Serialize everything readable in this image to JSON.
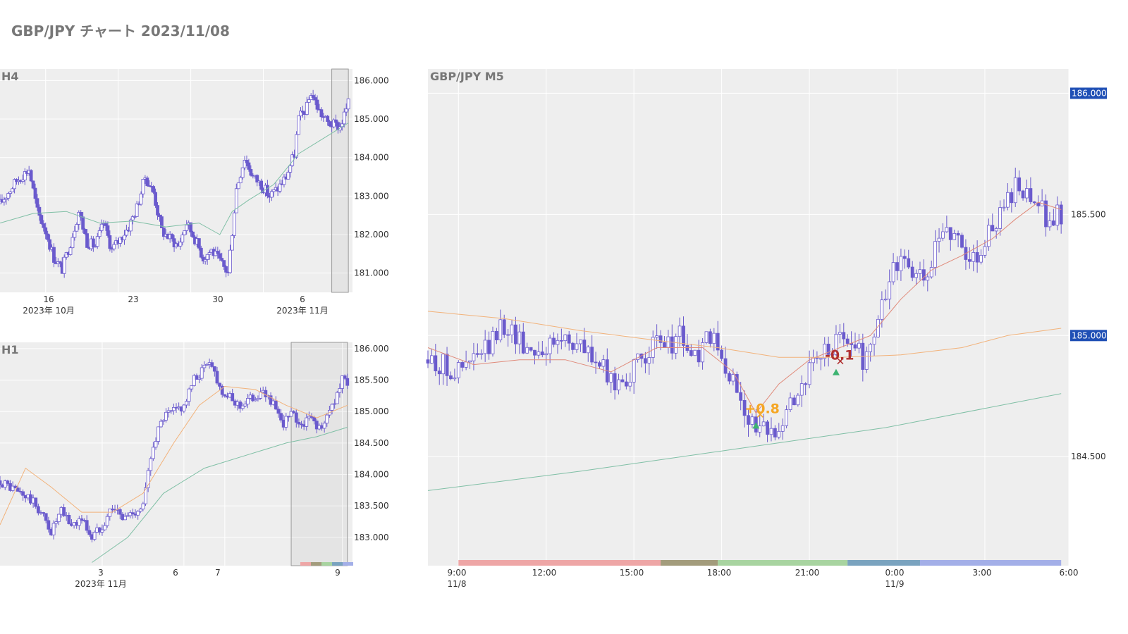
{
  "title": "GBP/JPY チャート 2023/11/08",
  "colors": {
    "plot_bg": "#eeeeee",
    "grid": "#ffffff",
    "candle": "#6a5acd",
    "ma_red": "#e08a7a",
    "ma_orange": "#f2b27a",
    "ma_green": "#7fbfa5",
    "price_tag": "#1f4fb5",
    "win": "#f5a623",
    "loss": "#b03030",
    "entry_marker": "#3cb371"
  },
  "chart_data": [
    {
      "type": "candlestick",
      "title": "H4",
      "yticks": [
        "186.000",
        "185.000",
        "184.000",
        "183.000",
        "182.000",
        "181.000"
      ],
      "ytick_values": [
        186,
        185,
        184,
        183,
        182,
        181
      ],
      "xticks": [
        "16",
        "23",
        "30",
        "6"
      ],
      "xsub": [
        "2023年 10月",
        "2023年 11月"
      ],
      "ylim": [
        180.5,
        186.3
      ],
      "path": [
        [
          0,
          182.8
        ],
        [
          4,
          183.4
        ],
        [
          7,
          183.7
        ],
        [
          9,
          182.6
        ],
        [
          11,
          182.1
        ],
        [
          13,
          181.4
        ],
        [
          15,
          181.1
        ],
        [
          17,
          181.8
        ],
        [
          19,
          182.6
        ],
        [
          21,
          181.8
        ],
        [
          23,
          181.7
        ],
        [
          25,
          182.3
        ],
        [
          27,
          181.6
        ],
        [
          29,
          181.9
        ],
        [
          31,
          182.2
        ],
        [
          33,
          182.7
        ],
        [
          35,
          183.5
        ],
        [
          37,
          183.1
        ],
        [
          39,
          182.1
        ],
        [
          41,
          181.9
        ],
        [
          43,
          181.7
        ],
        [
          45,
          182.3
        ],
        [
          47,
          181.9
        ],
        [
          49,
          181.4
        ],
        [
          51,
          181.6
        ],
        [
          53,
          181.3
        ],
        [
          55,
          181.0
        ],
        [
          57,
          183.2
        ],
        [
          59,
          184.0
        ],
        [
          61,
          183.5
        ],
        [
          63,
          183.3
        ],
        [
          65,
          183.0
        ],
        [
          67,
          183.2
        ],
        [
          69,
          183.5
        ],
        [
          71,
          184.1
        ],
        [
          72,
          185.0
        ],
        [
          74,
          185.3
        ],
        [
          75,
          185.7
        ],
        [
          77,
          185.2
        ],
        [
          79,
          184.9
        ],
        [
          82,
          184.8
        ],
        [
          84,
          185.4
        ]
      ],
      "ma": [
        {
          "color_key": "ma_green",
          "pts": [
            [
              0,
              182.3
            ],
            [
              8,
              182.55
            ],
            [
              16,
              182.6
            ],
            [
              24,
              182.3
            ],
            [
              32,
              182.35
            ],
            [
              40,
              182.2
            ],
            [
              48,
              182.3
            ],
            [
              53,
              182.0
            ],
            [
              56,
              182.6
            ],
            [
              60,
              182.9
            ],
            [
              66,
              183.3
            ],
            [
              72,
              184.1
            ],
            [
              78,
              184.5
            ],
            [
              84,
              184.9
            ]
          ]
        }
      ],
      "highlight_x": [
        80,
        84
      ]
    },
    {
      "type": "candlestick",
      "title": "H1",
      "yticks": [
        "186.000",
        "185.500",
        "185.000",
        "184.500",
        "184.000",
        "183.500",
        "183.000"
      ],
      "ytick_values": [
        186,
        185.5,
        185,
        184.5,
        184,
        183.5,
        183
      ],
      "xticks": [
        "3",
        "6",
        "7",
        "9"
      ],
      "xsub": [
        "2023年 11月"
      ],
      "ylim": [
        182.55,
        186.1
      ],
      "path": [
        [
          0,
          183.9
        ],
        [
          4,
          183.7
        ],
        [
          6,
          183.6
        ],
        [
          8,
          183.4
        ],
        [
          10,
          183.1
        ],
        [
          12,
          183.4
        ],
        [
          14,
          183.2
        ],
        [
          16,
          183.3
        ],
        [
          18,
          183.0
        ],
        [
          20,
          183.2
        ],
        [
          22,
          183.5
        ],
        [
          24,
          183.3
        ],
        [
          26,
          183.4
        ],
        [
          28,
          183.5
        ],
        [
          30,
          184.5
        ],
        [
          32,
          184.9
        ],
        [
          34,
          185.0
        ],
        [
          36,
          185.1
        ],
        [
          38,
          185.5
        ],
        [
          40,
          185.7
        ],
        [
          41,
          185.85
        ],
        [
          43,
          185.4
        ],
        [
          45,
          185.2
        ],
        [
          47,
          185.1
        ],
        [
          49,
          185.2
        ],
        [
          51,
          185.3
        ],
        [
          53,
          185.2
        ],
        [
          55,
          184.8
        ],
        [
          57,
          184.95
        ],
        [
          59,
          184.8
        ],
        [
          61,
          184.9
        ],
        [
          63,
          184.7
        ],
        [
          65,
          185.1
        ],
        [
          67,
          185.5
        ],
        [
          68,
          185.5
        ]
      ],
      "ma": [
        {
          "color_key": "ma_orange",
          "pts": [
            [
              0,
              183.2
            ],
            [
              5,
              184.1
            ],
            [
              10,
              183.8
            ],
            [
              16,
              183.4
            ],
            [
              22,
              183.4
            ],
            [
              28,
              183.7
            ],
            [
              34,
              184.5
            ],
            [
              39,
              185.1
            ],
            [
              44,
              185.4
            ],
            [
              50,
              185.35
            ],
            [
              56,
              185.1
            ],
            [
              62,
              184.9
            ],
            [
              68,
              185.1
            ]
          ]
        },
        {
          "color_key": "ma_green",
          "pts": [
            [
              18,
              182.6
            ],
            [
              25,
              183.0
            ],
            [
              32,
              183.7
            ],
            [
              40,
              184.1
            ],
            [
              48,
              184.3
            ],
            [
              56,
              184.5
            ],
            [
              62,
              184.6
            ],
            [
              68,
              184.75
            ]
          ]
        }
      ],
      "highlight_x": [
        57,
        68
      ]
    },
    {
      "type": "candlestick",
      "title": "GBP/JPY M5",
      "yticks": [
        "185.500",
        "184.500"
      ],
      "ytick_values": [
        185.5,
        184.5
      ],
      "price_tags": [
        "186.000",
        "185.000"
      ],
      "price_tag_values": [
        186,
        185
      ],
      "xticks": [
        "9:00",
        "12:00",
        "15:00",
        "18:00",
        "21:00",
        "0:00",
        "3:00",
        "6:00"
      ],
      "xsub": [
        "11/8",
        "11/9"
      ],
      "ylim": [
        184.05,
        186.1
      ],
      "path": [
        [
          0,
          184.9
        ],
        [
          4,
          184.85
        ],
        [
          8,
          184.95
        ],
        [
          10,
          185.05
        ],
        [
          13,
          184.95
        ],
        [
          16,
          184.95
        ],
        [
          18,
          185.0
        ],
        [
          22,
          184.9
        ],
        [
          24,
          184.8
        ],
        [
          27,
          184.85
        ],
        [
          29,
          184.95
        ],
        [
          31,
          184.95
        ],
        [
          33,
          185.0
        ],
        [
          35,
          184.9
        ],
        [
          37,
          185.0
        ],
        [
          39,
          184.85
        ],
        [
          41,
          184.75
        ],
        [
          43,
          184.6
        ],
        [
          45,
          184.6
        ],
        [
          47,
          184.7
        ],
        [
          49,
          184.8
        ],
        [
          51,
          184.9
        ],
        [
          53,
          184.95
        ],
        [
          55,
          185.0
        ],
        [
          57,
          184.9
        ],
        [
          59,
          185.05
        ],
        [
          61,
          185.3
        ],
        [
          63,
          185.3
        ],
        [
          65,
          185.2
        ],
        [
          67,
          185.4
        ],
        [
          69,
          185.45
        ],
        [
          71,
          185.3
        ],
        [
          73,
          185.4
        ],
        [
          75,
          185.5
        ],
        [
          77,
          185.6
        ],
        [
          79,
          185.55
        ],
        [
          81,
          185.5
        ],
        [
          83,
          185.5
        ]
      ],
      "ma": [
        {
          "color_key": "ma_red",
          "pts": [
            [
              0,
              184.95
            ],
            [
              6,
              184.88
            ],
            [
              12,
              184.9
            ],
            [
              18,
              184.9
            ],
            [
              24,
              184.85
            ],
            [
              30,
              184.95
            ],
            [
              36,
              184.95
            ],
            [
              40,
              184.85
            ],
            [
              43,
              184.68
            ],
            [
              46,
              184.8
            ],
            [
              50,
              184.9
            ],
            [
              54,
              184.95
            ],
            [
              58,
              185.0
            ],
            [
              62,
              185.15
            ],
            [
              66,
              185.27
            ],
            [
              70,
              185.33
            ],
            [
              74,
              185.4
            ],
            [
              77,
              185.48
            ],
            [
              80,
              185.55
            ],
            [
              83,
              185.52
            ]
          ]
        },
        {
          "color_key": "ma_orange",
          "pts": [
            [
              0,
              185.1
            ],
            [
              10,
              185.07
            ],
            [
              20,
              185.02
            ],
            [
              30,
              184.98
            ],
            [
              38,
              184.95
            ],
            [
              46,
              184.91
            ],
            [
              54,
              184.91
            ],
            [
              62,
              184.92
            ],
            [
              70,
              184.95
            ],
            [
              76,
              185.0
            ],
            [
              83,
              185.03
            ]
          ]
        },
        {
          "color_key": "ma_green",
          "pts": [
            [
              0,
              184.36
            ],
            [
              20,
              184.44
            ],
            [
              40,
              184.53
            ],
            [
              60,
              184.62
            ],
            [
              83,
              184.76
            ]
          ]
        }
      ],
      "session_bar": [
        {
          "from": 4,
          "to": 30.5,
          "color": "#eea6a6"
        },
        {
          "from": 30.5,
          "to": 38,
          "color": "#a39c7c"
        },
        {
          "from": 38,
          "to": 55,
          "color": "#a8d4a0"
        },
        {
          "from": 55,
          "to": 64.5,
          "color": "#7aa3bf"
        },
        {
          "from": 64.5,
          "to": 83,
          "color": "#a3afe8"
        }
      ],
      "annotations": [
        {
          "text": "+0.8",
          "x": 43,
          "y": 184.68,
          "color_key": "win"
        },
        {
          "text": "-0.1",
          "x": 53.5,
          "y": 184.9,
          "color_key": "loss"
        }
      ]
    }
  ]
}
